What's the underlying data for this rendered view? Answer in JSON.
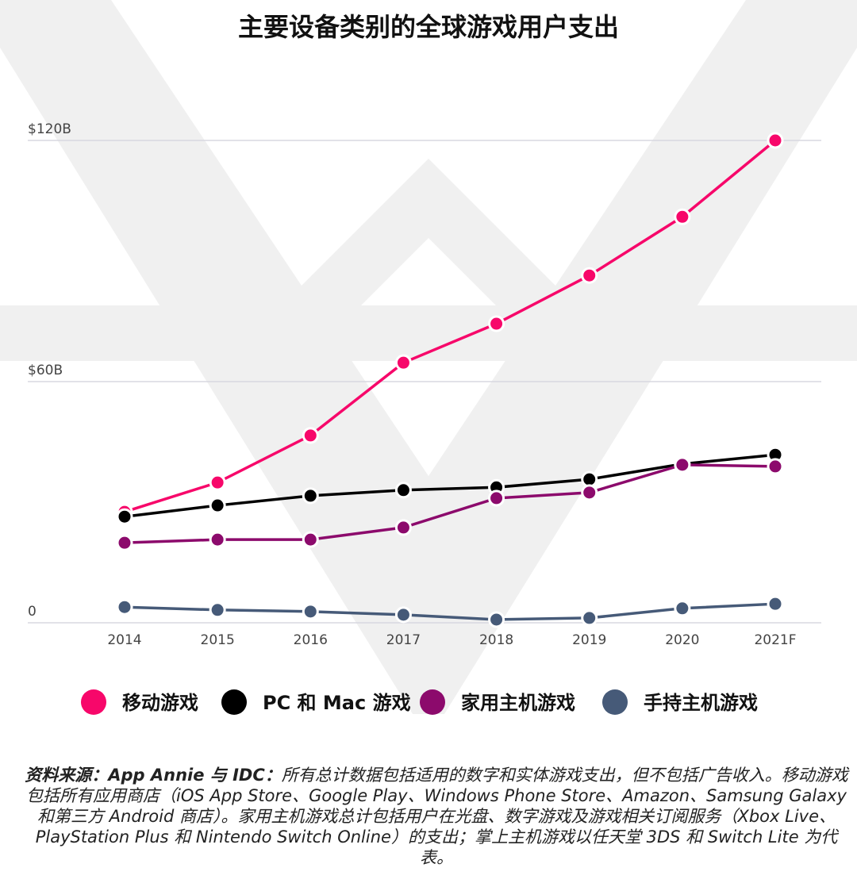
{
  "chart_data": {
    "type": "line",
    "title": "主要设备类别的全球游戏用户支出",
    "categories": [
      "2014",
      "2015",
      "2016",
      "2017",
      "2018",
      "2019",
      "2020",
      "2021F"
    ],
    "y_ticks": [
      {
        "value": 0,
        "label": "0"
      },
      {
        "value": 60,
        "label": "$60B"
      },
      {
        "value": 120,
        "label": "$120B"
      }
    ],
    "ylim": [
      0,
      120
    ],
    "y_unit": "B USD",
    "grid": "horizontal",
    "legend_position": "bottom",
    "series": [
      {
        "name": "移动游戏",
        "color": "#f7076a",
        "values": [
          27.6,
          34.9,
          46.6,
          64.7,
          74.4,
          86.4,
          101,
          120
        ]
      },
      {
        "name": "PC 和 Mac 游戏",
        "color": "#000000",
        "values": [
          26.4,
          29.2,
          31.6,
          33,
          33.7,
          35.7,
          39.5,
          41.8
        ]
      },
      {
        "name": "家用主机游戏",
        "color": "#8c0a6c",
        "values": [
          19.9,
          20.7,
          20.7,
          23.7,
          31,
          32.4,
          39.3,
          38.9
        ]
      },
      {
        "name": "手持主机游戏",
        "color": "#465a78",
        "values": [
          3.9,
          3.2,
          2.8,
          2.0,
          0.8,
          1.2,
          3.6,
          4.7
        ]
      }
    ]
  },
  "footnote": {
    "source_label": "资料来源：App Annie 与 IDC：",
    "text": "所有总计数据包括适用的数字和实体游戏支出，但不包括广告收入。移动游戏包括所有应用商店（iOS App Store、Google Play、Windows Phone Store、Amazon、Samsung Galaxy 和第三方 Android 商店）。家用主机游戏总计包括用户在光盘、数字游戏及游戏相关订阅服务（Xbox Live、PlayStation Plus 和 Nintendo Switch Online）的支出；掌上主机游戏以任天堂 3DS 和 Switch Lite 为代表。"
  }
}
